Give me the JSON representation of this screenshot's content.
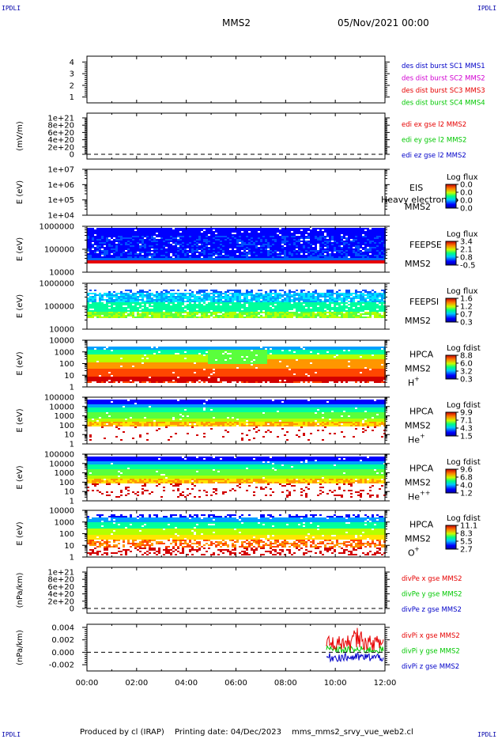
{
  "header": {
    "corner_tl": "IPDLI",
    "corner_tr": "IPDLI",
    "spacecraft": "MMS2",
    "datetime": "05/Nov/2021 00:00"
  },
  "footer": {
    "credit": "Produced by cl (IRAP)",
    "printing_date": "Printing date: 04/Dec/2023",
    "filename": "mms_mms2_srvy_vue_web2.cl",
    "corner_bl": "IPDLI",
    "corner_br": "IPDLI"
  },
  "colors": {
    "red": "#e60000",
    "green": "#00c800",
    "blue": "#0000c8",
    "magenta": "#d200d2",
    "zero_line": "#000000"
  },
  "chart_data": {
    "type": "multi-panel time series / spectrogram",
    "x_ticks": [
      "00:00",
      "02:00",
      "04:00",
      "06:00",
      "08:00",
      "10:00",
      "12:00"
    ],
    "panels": [
      {
        "id": "burst",
        "type": "line",
        "ylabel": "",
        "yticks": [
          "4",
          "3",
          "2",
          "1"
        ],
        "ylim": [
          0.5,
          4.5
        ],
        "legend": [
          {
            "text": "des dist burst SC1 MMS1",
            "color": "#0000c8"
          },
          {
            "text": "des dist burst SC2 MMS2",
            "color": "#d200d2"
          },
          {
            "text": "des dist burst SC3 MMS3",
            "color": "#e60000"
          },
          {
            "text": "des dist burst SC4 MMS4",
            "color": "#00c800"
          }
        ]
      },
      {
        "id": "edi",
        "type": "line",
        "ylabel": "(mV/m)",
        "yticks": [
          "1e+21",
          "8e+20",
          "6e+20",
          "4e+20",
          "2e+20",
          "0"
        ],
        "ylim": [
          0,
          1e+21
        ],
        "legend": [
          {
            "text": "edi ex gse l2 MMS2",
            "color": "#e60000"
          },
          {
            "text": "edi ey gse l2 MMS2",
            "color": "#00c800"
          },
          {
            "text": "edi ez gse l2 MMS2",
            "color": "#0000c8"
          }
        ]
      },
      {
        "id": "eis",
        "type": "heatmap",
        "ylabel": "E (eV)",
        "yticks": [
          "1e+07",
          "1e+06",
          "1e+05",
          "1e+04"
        ],
        "ylim": [
          10000,
          10000000
        ],
        "log_y": true,
        "instrument": "EIS",
        "species": "MMS2",
        "overlay_text": "Heavy electron to",
        "cbar_title": "Log flux",
        "cbar_ticks": [
          "0.0",
          "0.0",
          "0.0",
          "0.0"
        ]
      },
      {
        "id": "feeps_e",
        "type": "heatmap",
        "ylabel": "E (eV)",
        "yticks": [
          "1000000",
          "100000",
          "10000"
        ],
        "ylim": [
          10000,
          1000000
        ],
        "log_y": true,
        "instrument": "FEEPSE",
        "species": "MMS2",
        "cbar_title": "Log flux",
        "cbar_ticks": [
          "3.4",
          "2.1",
          "0.8",
          "-0.5"
        ]
      },
      {
        "id": "feeps_i",
        "type": "heatmap",
        "ylabel": "E (eV)",
        "yticks": [
          "1000000",
          "100000",
          "10000"
        ],
        "ylim": [
          10000,
          1000000
        ],
        "log_y": true,
        "instrument": "FEEPSI",
        "species": "MMS2",
        "cbar_title": "Log flux",
        "cbar_ticks": [
          "1.6",
          "1.2",
          "0.7",
          "0.3"
        ]
      },
      {
        "id": "hpca_h",
        "type": "heatmap",
        "ylabel": "E (eV)",
        "yticks": [
          "10000",
          "1000",
          "100",
          "10",
          "1"
        ],
        "ylim": [
          1,
          10000
        ],
        "log_y": true,
        "instrument": "HPCA",
        "species": "MMS2",
        "ion": "H",
        "ion_sup": "+",
        "cbar_title": "Log fdist",
        "cbar_ticks": [
          "8.8",
          "6.0",
          "3.2",
          "0.3"
        ]
      },
      {
        "id": "hpca_he",
        "type": "heatmap",
        "ylabel": "E (eV)",
        "yticks": [
          "100000",
          "10000",
          "1000",
          "100",
          "10",
          "1"
        ],
        "ylim": [
          1,
          100000
        ],
        "log_y": true,
        "instrument": "HPCA",
        "species": "MMS2",
        "ion": "He",
        "ion_sup": "+",
        "cbar_title": "Log fdist",
        "cbar_ticks": [
          "9.9",
          "7.1",
          "4.3",
          "1.5"
        ]
      },
      {
        "id": "hpca_he2",
        "type": "heatmap",
        "ylabel": "E (eV)",
        "yticks": [
          "100000",
          "10000",
          "1000",
          "100",
          "10",
          "1"
        ],
        "ylim": [
          1,
          100000
        ],
        "log_y": true,
        "instrument": "HPCA",
        "species": "MMS2",
        "ion": "He",
        "ion_sup": "++",
        "cbar_title": "Log fdist",
        "cbar_ticks": [
          "9.6",
          "6.8",
          "4.0",
          "1.2"
        ]
      },
      {
        "id": "hpca_o",
        "type": "heatmap",
        "ylabel": "E (eV)",
        "yticks": [
          "10000",
          "1000",
          "100",
          "10",
          "1"
        ],
        "ylim": [
          1,
          10000
        ],
        "log_y": true,
        "instrument": "HPCA",
        "species": "MMS2",
        "ion": "O",
        "ion_sup": "+",
        "cbar_title": "Log fdist",
        "cbar_ticks": [
          "11.1",
          "8.3",
          "5.5",
          "2.7"
        ]
      },
      {
        "id": "divpe",
        "type": "line",
        "ylabel": "(nPa/km)",
        "yticks": [
          "1e+21",
          "8e+20",
          "6e+20",
          "4e+20",
          "2e+20",
          "0"
        ],
        "ylim": [
          0,
          1e+21
        ],
        "legend": [
          {
            "text": "divPe x gse MMS2",
            "color": "#e60000"
          },
          {
            "text": "divPe y gse MMS2",
            "color": "#00c800"
          },
          {
            "text": "divPe z gse MMS2",
            "color": "#0000c8"
          }
        ]
      },
      {
        "id": "divpi",
        "type": "line",
        "ylabel": "(nPa/km)",
        "yticks": [
          "0.004",
          "0.002",
          "0.000",
          "-0.002"
        ],
        "ylim": [
          -0.003,
          0.0045
        ],
        "data_start": "09:40",
        "data_end": "12:00",
        "legend": [
          {
            "text": "divPi x gse MMS2",
            "color": "#e60000"
          },
          {
            "text": "divPi y gse MMS2",
            "color": "#00c800"
          },
          {
            "text": "divPi z gse MMS2",
            "color": "#0000c8"
          }
        ]
      }
    ]
  }
}
